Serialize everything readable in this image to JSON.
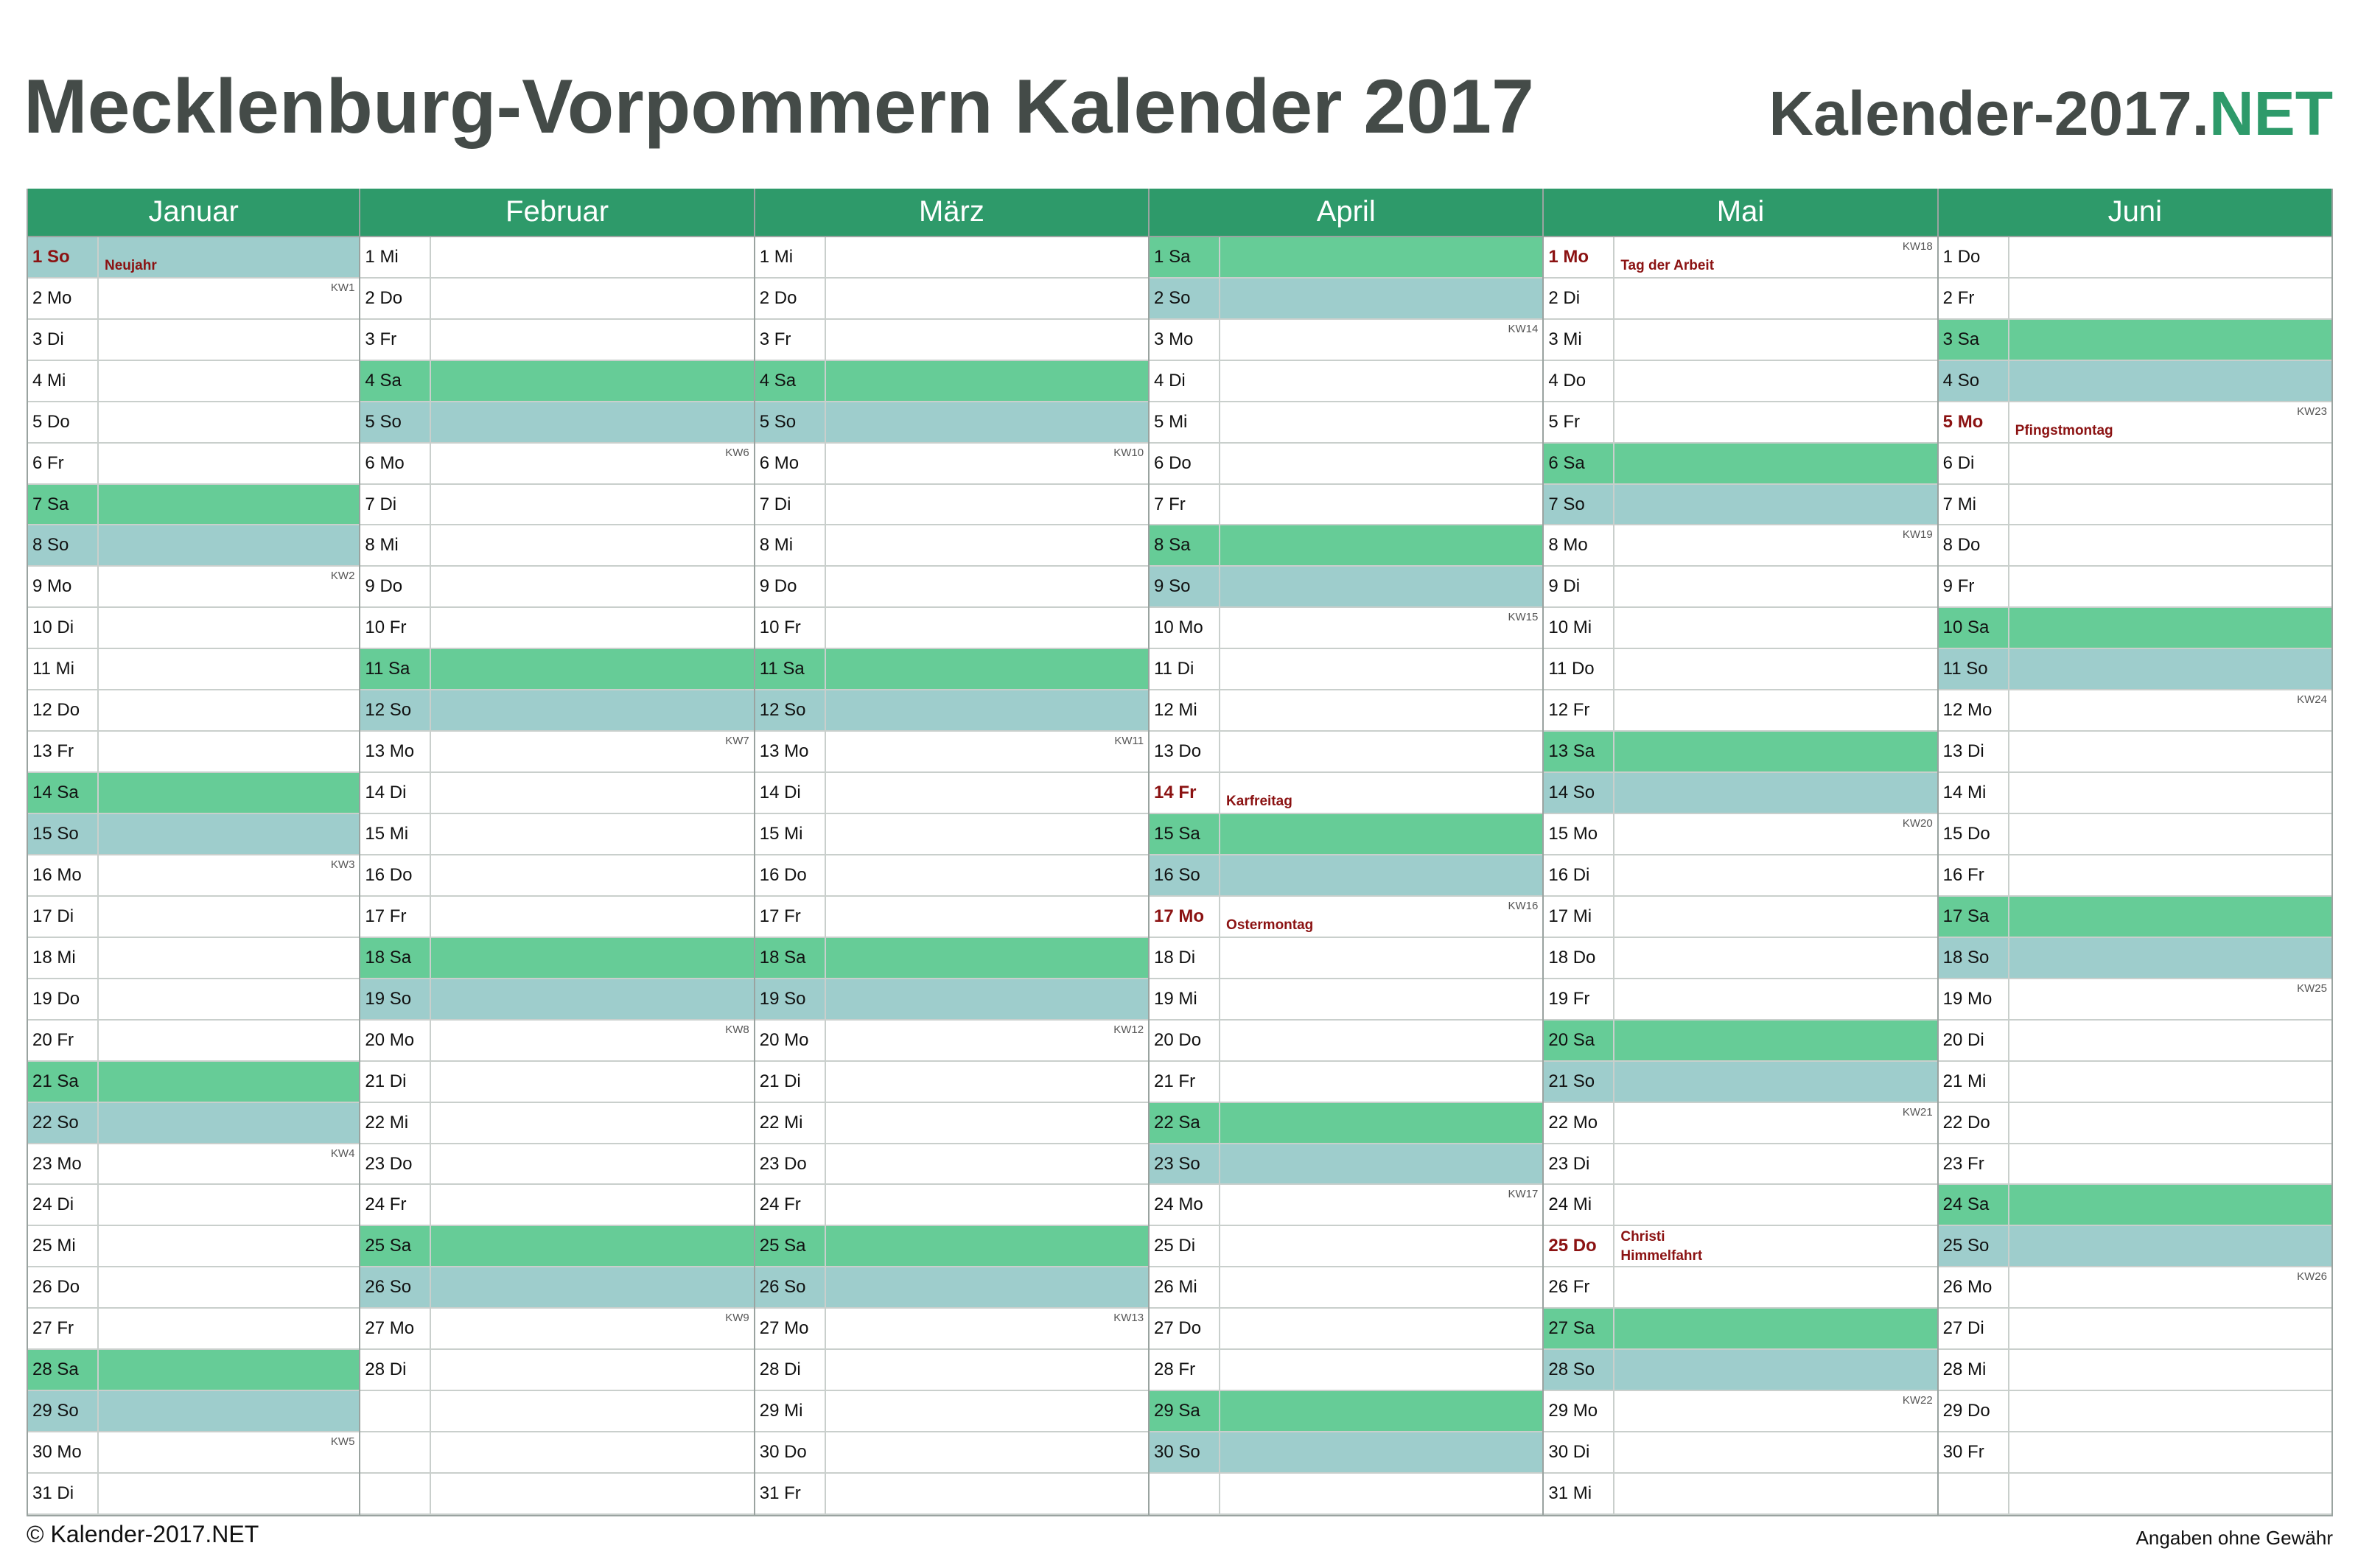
{
  "header": {
    "title": "Mecklenburg-Vorpommern Kalender 2017",
    "brand_main": "Kalender-2017.",
    "brand_accent": "NET"
  },
  "footer": {
    "copyright": "© Kalender-2017.NET",
    "disclaimer": "Angaben ohne Gewähr"
  },
  "colors": {
    "header_green": "#2e9a6a",
    "saturday": "#66cc97",
    "sunday": "#9ecdcc",
    "holiday_text": "#8b1212",
    "title_text": "#444b48"
  },
  "months": [
    {
      "name": "Januar",
      "days": [
        {
          "label": "1 So",
          "type": "so",
          "holiday": "Neujahr"
        },
        {
          "label": "2 Mo",
          "type": "",
          "kw": "KW1"
        },
        {
          "label": "3 Di",
          "type": ""
        },
        {
          "label": "4 Mi",
          "type": ""
        },
        {
          "label": "5 Do",
          "type": ""
        },
        {
          "label": "6 Fr",
          "type": ""
        },
        {
          "label": "7 Sa",
          "type": "sa"
        },
        {
          "label": "8 So",
          "type": "so"
        },
        {
          "label": "9 Mo",
          "type": "",
          "kw": "KW2"
        },
        {
          "label": "10 Di",
          "type": ""
        },
        {
          "label": "11 Mi",
          "type": ""
        },
        {
          "label": "12 Do",
          "type": ""
        },
        {
          "label": "13 Fr",
          "type": ""
        },
        {
          "label": "14 Sa",
          "type": "sa"
        },
        {
          "label": "15 So",
          "type": "so"
        },
        {
          "label": "16 Mo",
          "type": "",
          "kw": "KW3"
        },
        {
          "label": "17 Di",
          "type": ""
        },
        {
          "label": "18 Mi",
          "type": ""
        },
        {
          "label": "19 Do",
          "type": ""
        },
        {
          "label": "20 Fr",
          "type": ""
        },
        {
          "label": "21 Sa",
          "type": "sa"
        },
        {
          "label": "22 So",
          "type": "so"
        },
        {
          "label": "23 Mo",
          "type": "",
          "kw": "KW4"
        },
        {
          "label": "24 Di",
          "type": ""
        },
        {
          "label": "25 Mi",
          "type": ""
        },
        {
          "label": "26 Do",
          "type": ""
        },
        {
          "label": "27 Fr",
          "type": ""
        },
        {
          "label": "28 Sa",
          "type": "sa"
        },
        {
          "label": "29 So",
          "type": "so"
        },
        {
          "label": "30 Mo",
          "type": "",
          "kw": "KW5"
        },
        {
          "label": "31 Di",
          "type": ""
        }
      ]
    },
    {
      "name": "Februar",
      "days": [
        {
          "label": "1 Mi",
          "type": ""
        },
        {
          "label": "2 Do",
          "type": ""
        },
        {
          "label": "3 Fr",
          "type": ""
        },
        {
          "label": "4 Sa",
          "type": "sa"
        },
        {
          "label": "5 So",
          "type": "so"
        },
        {
          "label": "6 Mo",
          "type": "",
          "kw": "KW6"
        },
        {
          "label": "7 Di",
          "type": ""
        },
        {
          "label": "8 Mi",
          "type": ""
        },
        {
          "label": "9 Do",
          "type": ""
        },
        {
          "label": "10 Fr",
          "type": ""
        },
        {
          "label": "11 Sa",
          "type": "sa"
        },
        {
          "label": "12 So",
          "type": "so"
        },
        {
          "label": "13 Mo",
          "type": "",
          "kw": "KW7"
        },
        {
          "label": "14 Di",
          "type": ""
        },
        {
          "label": "15 Mi",
          "type": ""
        },
        {
          "label": "16 Do",
          "type": ""
        },
        {
          "label": "17 Fr",
          "type": ""
        },
        {
          "label": "18 Sa",
          "type": "sa"
        },
        {
          "label": "19 So",
          "type": "so"
        },
        {
          "label": "20 Mo",
          "type": "",
          "kw": "KW8"
        },
        {
          "label": "21 Di",
          "type": ""
        },
        {
          "label": "22 Mi",
          "type": ""
        },
        {
          "label": "23 Do",
          "type": ""
        },
        {
          "label": "24 Fr",
          "type": ""
        },
        {
          "label": "25 Sa",
          "type": "sa"
        },
        {
          "label": "26 So",
          "type": "so"
        },
        {
          "label": "27 Mo",
          "type": "",
          "kw": "KW9"
        },
        {
          "label": "28 Di",
          "type": ""
        },
        {
          "label": "",
          "type": "empty"
        },
        {
          "label": "",
          "type": "empty"
        },
        {
          "label": "",
          "type": "empty"
        }
      ]
    },
    {
      "name": "März",
      "days": [
        {
          "label": "1 Mi",
          "type": ""
        },
        {
          "label": "2 Do",
          "type": ""
        },
        {
          "label": "3 Fr",
          "type": ""
        },
        {
          "label": "4 Sa",
          "type": "sa"
        },
        {
          "label": "5 So",
          "type": "so"
        },
        {
          "label": "6 Mo",
          "type": "",
          "kw": "KW10"
        },
        {
          "label": "7 Di",
          "type": ""
        },
        {
          "label": "8 Mi",
          "type": ""
        },
        {
          "label": "9 Do",
          "type": ""
        },
        {
          "label": "10 Fr",
          "type": ""
        },
        {
          "label": "11 Sa",
          "type": "sa"
        },
        {
          "label": "12 So",
          "type": "so"
        },
        {
          "label": "13 Mo",
          "type": "",
          "kw": "KW11"
        },
        {
          "label": "14 Di",
          "type": ""
        },
        {
          "label": "15 Mi",
          "type": ""
        },
        {
          "label": "16 Do",
          "type": ""
        },
        {
          "label": "17 Fr",
          "type": ""
        },
        {
          "label": "18 Sa",
          "type": "sa"
        },
        {
          "label": "19 So",
          "type": "so"
        },
        {
          "label": "20 Mo",
          "type": "",
          "kw": "KW12"
        },
        {
          "label": "21 Di",
          "type": ""
        },
        {
          "label": "22 Mi",
          "type": ""
        },
        {
          "label": "23 Do",
          "type": ""
        },
        {
          "label": "24 Fr",
          "type": ""
        },
        {
          "label": "25 Sa",
          "type": "sa"
        },
        {
          "label": "26 So",
          "type": "so"
        },
        {
          "label": "27 Mo",
          "type": "",
          "kw": "KW13"
        },
        {
          "label": "28 Di",
          "type": ""
        },
        {
          "label": "29 Mi",
          "type": ""
        },
        {
          "label": "30 Do",
          "type": ""
        },
        {
          "label": "31 Fr",
          "type": ""
        }
      ]
    },
    {
      "name": "April",
      "days": [
        {
          "label": "1 Sa",
          "type": "sa"
        },
        {
          "label": "2 So",
          "type": "so"
        },
        {
          "label": "3 Mo",
          "type": "",
          "kw": "KW14"
        },
        {
          "label": "4 Di",
          "type": ""
        },
        {
          "label": "5 Mi",
          "type": ""
        },
        {
          "label": "6 Do",
          "type": ""
        },
        {
          "label": "7 Fr",
          "type": ""
        },
        {
          "label": "8 Sa",
          "type": "sa"
        },
        {
          "label": "9 So",
          "type": "so"
        },
        {
          "label": "10 Mo",
          "type": "",
          "kw": "KW15"
        },
        {
          "label": "11 Di",
          "type": ""
        },
        {
          "label": "12 Mi",
          "type": ""
        },
        {
          "label": "13 Do",
          "type": ""
        },
        {
          "label": "14 Fr",
          "type": "",
          "holiday": "Karfreitag"
        },
        {
          "label": "15 Sa",
          "type": "sa"
        },
        {
          "label": "16 So",
          "type": "so"
        },
        {
          "label": "17 Mo",
          "type": "",
          "kw": "KW16",
          "holiday": "Ostermontag"
        },
        {
          "label": "18 Di",
          "type": ""
        },
        {
          "label": "19 Mi",
          "type": ""
        },
        {
          "label": "20 Do",
          "type": ""
        },
        {
          "label": "21 Fr",
          "type": ""
        },
        {
          "label": "22 Sa",
          "type": "sa"
        },
        {
          "label": "23 So",
          "type": "so"
        },
        {
          "label": "24 Mo",
          "type": "",
          "kw": "KW17"
        },
        {
          "label": "25 Di",
          "type": ""
        },
        {
          "label": "26 Mi",
          "type": ""
        },
        {
          "label": "27 Do",
          "type": ""
        },
        {
          "label": "28 Fr",
          "type": ""
        },
        {
          "label": "29 Sa",
          "type": "sa"
        },
        {
          "label": "30 So",
          "type": "so"
        },
        {
          "label": "",
          "type": "empty"
        }
      ]
    },
    {
      "name": "Mai",
      "days": [
        {
          "label": "1 Mo",
          "type": "",
          "kw": "KW18",
          "holiday": "Tag der Arbeit"
        },
        {
          "label": "2 Di",
          "type": ""
        },
        {
          "label": "3 Mi",
          "type": ""
        },
        {
          "label": "4 Do",
          "type": ""
        },
        {
          "label": "5 Fr",
          "type": ""
        },
        {
          "label": "6 Sa",
          "type": "sa"
        },
        {
          "label": "7 So",
          "type": "so"
        },
        {
          "label": "8 Mo",
          "type": "",
          "kw": "KW19"
        },
        {
          "label": "9 Di",
          "type": ""
        },
        {
          "label": "10 Mi",
          "type": ""
        },
        {
          "label": "11 Do",
          "type": ""
        },
        {
          "label": "12 Fr",
          "type": ""
        },
        {
          "label": "13 Sa",
          "type": "sa"
        },
        {
          "label": "14 So",
          "type": "so"
        },
        {
          "label": "15 Mo",
          "type": "",
          "kw": "KW20"
        },
        {
          "label": "16 Di",
          "type": ""
        },
        {
          "label": "17 Mi",
          "type": ""
        },
        {
          "label": "18 Do",
          "type": ""
        },
        {
          "label": "19 Fr",
          "type": ""
        },
        {
          "label": "20 Sa",
          "type": "sa"
        },
        {
          "label": "21 So",
          "type": "so"
        },
        {
          "label": "22 Mo",
          "type": "",
          "kw": "KW21"
        },
        {
          "label": "23 Di",
          "type": ""
        },
        {
          "label": "24 Mi",
          "type": ""
        },
        {
          "label": "25 Do",
          "type": "",
          "holiday": "Christi Himmelfahrt",
          "two": true
        },
        {
          "label": "26 Fr",
          "type": ""
        },
        {
          "label": "27 Sa",
          "type": "sa"
        },
        {
          "label": "28 So",
          "type": "so"
        },
        {
          "label": "29 Mo",
          "type": "",
          "kw": "KW22"
        },
        {
          "label": "30 Di",
          "type": ""
        },
        {
          "label": "31 Mi",
          "type": ""
        }
      ]
    },
    {
      "name": "Juni",
      "days": [
        {
          "label": "1 Do",
          "type": ""
        },
        {
          "label": "2 Fr",
          "type": ""
        },
        {
          "label": "3 Sa",
          "type": "sa"
        },
        {
          "label": "4 So",
          "type": "so"
        },
        {
          "label": "5 Mo",
          "type": "",
          "kw": "KW23",
          "holiday": "Pfingstmontag"
        },
        {
          "label": "6 Di",
          "type": ""
        },
        {
          "label": "7 Mi",
          "type": ""
        },
        {
          "label": "8 Do",
          "type": ""
        },
        {
          "label": "9 Fr",
          "type": ""
        },
        {
          "label": "10 Sa",
          "type": "sa"
        },
        {
          "label": "11 So",
          "type": "so"
        },
        {
          "label": "12 Mo",
          "type": "",
          "kw": "KW24"
        },
        {
          "label": "13 Di",
          "type": ""
        },
        {
          "label": "14 Mi",
          "type": ""
        },
        {
          "label": "15 Do",
          "type": ""
        },
        {
          "label": "16 Fr",
          "type": ""
        },
        {
          "label": "17 Sa",
          "type": "sa"
        },
        {
          "label": "18 So",
          "type": "so"
        },
        {
          "label": "19 Mo",
          "type": "",
          "kw": "KW25"
        },
        {
          "label": "20 Di",
          "type": ""
        },
        {
          "label": "21 Mi",
          "type": ""
        },
        {
          "label": "22 Do",
          "type": ""
        },
        {
          "label": "23 Fr",
          "type": ""
        },
        {
          "label": "24 Sa",
          "type": "sa"
        },
        {
          "label": "25 So",
          "type": "so"
        },
        {
          "label": "26 Mo",
          "type": "",
          "kw": "KW26"
        },
        {
          "label": "27 Di",
          "type": ""
        },
        {
          "label": "28 Mi",
          "type": ""
        },
        {
          "label": "29 Do",
          "type": ""
        },
        {
          "label": "30 Fr",
          "type": ""
        },
        {
          "label": "",
          "type": "empty"
        }
      ]
    }
  ]
}
